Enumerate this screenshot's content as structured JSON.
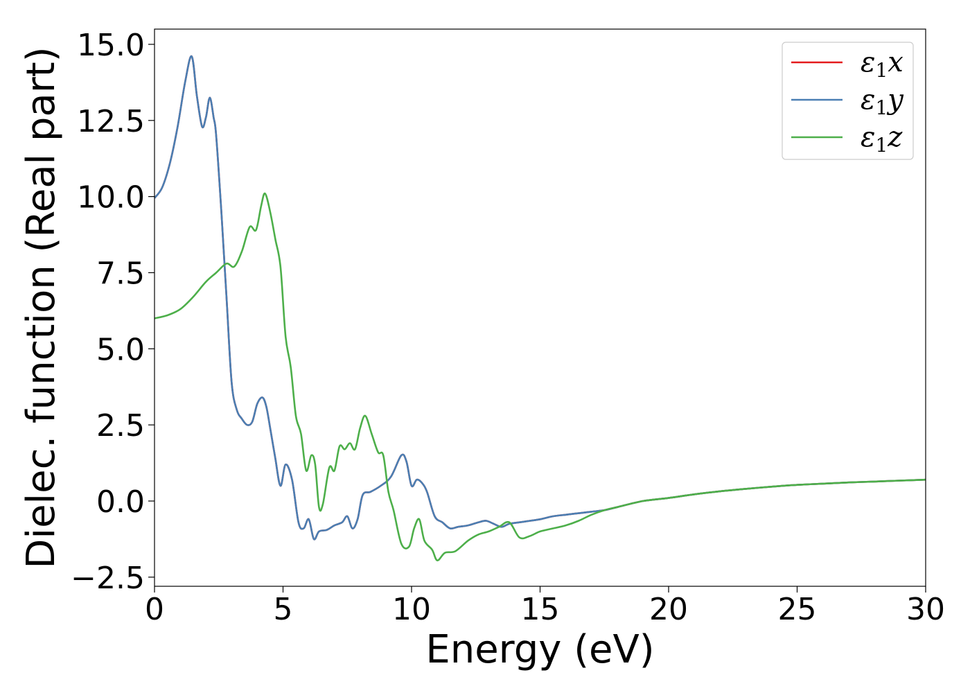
{
  "chart_data": {
    "type": "line",
    "title": "",
    "xlabel": "Energy (eV)",
    "ylabel": "Dielec. function (Real part)",
    "xlim": [
      0,
      30
    ],
    "ylim": [
      -2.8,
      15.5
    ],
    "xticks": [
      0,
      5,
      10,
      15,
      20,
      25,
      30
    ],
    "xtick_labels": [
      "0",
      "5",
      "10",
      "15",
      "20",
      "25",
      "30"
    ],
    "yticks": [
      -2.5,
      0.0,
      2.5,
      5.0,
      7.5,
      10.0,
      12.5,
      15.0
    ],
    "ytick_labels": [
      "−2.5",
      "0.0",
      "2.5",
      "5.0",
      "7.5",
      "10.0",
      "12.5",
      "15.0"
    ],
    "grid": false,
    "legend_position": "top-right",
    "series": [
      {
        "name": "ε₁x",
        "legend_main": "ε",
        "legend_sub": "1",
        "legend_tail": "x",
        "color": "#e41a1c",
        "x": [
          0,
          0.3,
          0.6,
          0.9,
          1.2,
          1.45,
          1.65,
          1.85,
          2.0,
          2.15,
          2.3,
          2.4,
          2.6,
          2.8,
          3.0,
          3.2,
          3.4,
          3.6,
          3.8,
          4.0,
          4.2,
          4.35,
          4.5,
          4.7,
          4.9,
          5.1,
          5.35,
          5.6,
          5.8,
          6.0,
          6.2,
          6.4,
          6.7,
          7.0,
          7.3,
          7.5,
          7.7,
          7.9,
          8.1,
          8.4,
          8.8,
          9.2,
          9.6,
          9.8,
          10.0,
          10.2,
          10.4,
          10.6,
          10.9,
          11.2,
          11.5,
          11.8,
          12.2,
          12.6,
          12.9,
          13.2,
          13.5,
          13.8,
          14.2,
          14.6,
          15.0,
          15.5,
          16.0,
          16.5,
          17.0,
          17.5,
          18.0,
          19.0,
          20.0,
          21.0,
          22.0,
          23.0,
          24.0,
          25.0,
          26.0,
          27.0,
          28.0,
          29.0,
          30.0
        ],
        "y": [
          9.95,
          10.3,
          11.1,
          12.3,
          13.8,
          14.6,
          13.3,
          12.3,
          12.6,
          13.25,
          12.6,
          12.0,
          9.5,
          6.7,
          3.9,
          3.0,
          2.7,
          2.5,
          2.6,
          3.2,
          3.4,
          3.1,
          2.4,
          1.4,
          0.5,
          1.2,
          0.7,
          -0.7,
          -0.9,
          -0.6,
          -1.25,
          -1.0,
          -0.95,
          -0.8,
          -0.7,
          -0.5,
          -0.9,
          -0.6,
          0.2,
          0.3,
          0.5,
          0.8,
          1.5,
          1.3,
          0.5,
          0.7,
          0.6,
          0.3,
          -0.5,
          -0.7,
          -0.9,
          -0.85,
          -0.8,
          -0.7,
          -0.65,
          -0.75,
          -0.85,
          -0.75,
          -0.7,
          -0.65,
          -0.6,
          -0.5,
          -0.45,
          -0.4,
          -0.35,
          -0.3,
          -0.2,
          0.0,
          0.1,
          0.22,
          0.32,
          0.4,
          0.47,
          0.53,
          0.57,
          0.61,
          0.64,
          0.67,
          0.7
        ]
      },
      {
        "name": "ε₁y",
        "legend_main": "ε",
        "legend_sub": "1",
        "legend_tail": "y",
        "color": "#4a7fb3",
        "x": [
          0,
          0.3,
          0.6,
          0.9,
          1.2,
          1.45,
          1.65,
          1.85,
          2.0,
          2.15,
          2.3,
          2.4,
          2.6,
          2.8,
          3.0,
          3.2,
          3.4,
          3.6,
          3.8,
          4.0,
          4.2,
          4.35,
          4.5,
          4.7,
          4.9,
          5.1,
          5.35,
          5.6,
          5.8,
          6.0,
          6.2,
          6.4,
          6.7,
          7.0,
          7.3,
          7.5,
          7.7,
          7.9,
          8.1,
          8.4,
          8.8,
          9.2,
          9.6,
          9.8,
          10.0,
          10.2,
          10.4,
          10.6,
          10.9,
          11.2,
          11.5,
          11.8,
          12.2,
          12.6,
          12.9,
          13.2,
          13.5,
          13.8,
          14.2,
          14.6,
          15.0,
          15.5,
          16.0,
          16.5,
          17.0,
          17.5,
          18.0,
          19.0,
          20.0,
          21.0,
          22.0,
          23.0,
          24.0,
          25.0,
          26.0,
          27.0,
          28.0,
          29.0,
          30.0
        ],
        "y": [
          9.95,
          10.3,
          11.1,
          12.3,
          13.8,
          14.6,
          13.3,
          12.3,
          12.6,
          13.25,
          12.6,
          12.0,
          9.5,
          6.7,
          3.9,
          3.0,
          2.7,
          2.5,
          2.6,
          3.2,
          3.4,
          3.1,
          2.4,
          1.4,
          0.5,
          1.2,
          0.7,
          -0.7,
          -0.9,
          -0.6,
          -1.25,
          -1.0,
          -0.95,
          -0.8,
          -0.7,
          -0.5,
          -0.9,
          -0.6,
          0.2,
          0.3,
          0.5,
          0.8,
          1.5,
          1.3,
          0.5,
          0.7,
          0.6,
          0.3,
          -0.5,
          -0.7,
          -0.9,
          -0.85,
          -0.8,
          -0.7,
          -0.65,
          -0.75,
          -0.85,
          -0.75,
          -0.7,
          -0.65,
          -0.6,
          -0.5,
          -0.45,
          -0.4,
          -0.35,
          -0.3,
          -0.2,
          0.0,
          0.1,
          0.22,
          0.32,
          0.4,
          0.47,
          0.53,
          0.57,
          0.61,
          0.64,
          0.67,
          0.7
        ]
      },
      {
        "name": "ε₁z",
        "legend_main": "ε",
        "legend_sub": "1",
        "legend_tail": "z",
        "color": "#4daf4a",
        "x": [
          0,
          0.5,
          1.0,
          1.5,
          2.0,
          2.4,
          2.8,
          3.1,
          3.4,
          3.7,
          3.95,
          4.15,
          4.3,
          4.5,
          4.7,
          4.9,
          5.1,
          5.3,
          5.5,
          5.7,
          5.9,
          6.1,
          6.25,
          6.4,
          6.55,
          6.8,
          7.0,
          7.2,
          7.4,
          7.6,
          7.8,
          8.0,
          8.2,
          8.45,
          8.7,
          8.9,
          9.1,
          9.3,
          9.6,
          9.9,
          10.1,
          10.3,
          10.5,
          10.8,
          11.0,
          11.3,
          11.7,
          12.2,
          12.6,
          13.0,
          13.4,
          13.8,
          14.2,
          14.6,
          15.0,
          15.5,
          16.0,
          16.5,
          17.0,
          17.5,
          18.0,
          19.0,
          20.0,
          21.0,
          22.0,
          23.0,
          24.0,
          25.0,
          26.0,
          27.0,
          28.0,
          29.0,
          30.0
        ],
        "y": [
          6.0,
          6.1,
          6.3,
          6.7,
          7.2,
          7.5,
          7.8,
          7.7,
          8.2,
          9.0,
          8.9,
          9.7,
          10.1,
          9.5,
          8.6,
          7.7,
          5.4,
          4.4,
          2.8,
          2.2,
          1.0,
          1.5,
          1.2,
          -0.2,
          -0.1,
          1.1,
          1.0,
          1.8,
          1.7,
          1.9,
          1.7,
          2.4,
          2.8,
          2.2,
          1.6,
          1.5,
          0.3,
          -0.3,
          -1.4,
          -1.5,
          -0.9,
          -0.6,
          -1.3,
          -1.6,
          -1.95,
          -1.7,
          -1.65,
          -1.3,
          -1.1,
          -1.0,
          -0.85,
          -0.7,
          -1.2,
          -1.15,
          -1.0,
          -0.9,
          -0.8,
          -0.65,
          -0.45,
          -0.3,
          -0.2,
          0.0,
          0.1,
          0.22,
          0.32,
          0.4,
          0.47,
          0.53,
          0.57,
          0.61,
          0.64,
          0.67,
          0.7
        ]
      }
    ]
  }
}
